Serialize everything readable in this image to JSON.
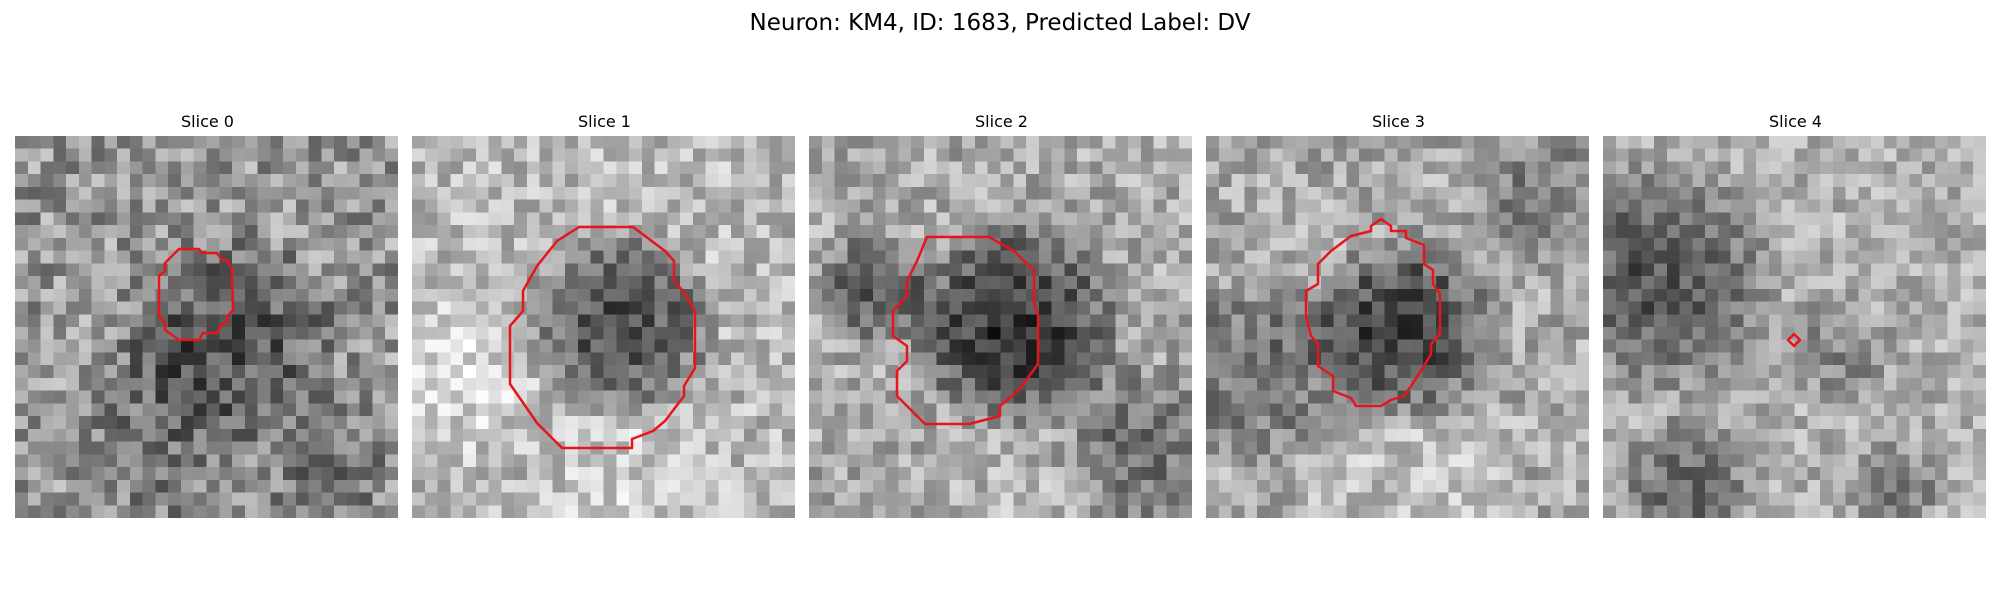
{
  "figure": {
    "title": "Neuron: KM4, ID: 1683, Predicted Label: DV"
  },
  "contour_color": "#e8141c",
  "panels": [
    {
      "title": "Slice 0",
      "image": "grayscale-microscopy-patch",
      "contour": "medium-blob"
    },
    {
      "title": "Slice 1",
      "image": "grayscale-microscopy-patch",
      "contour": "large-octagon"
    },
    {
      "title": "Slice 2",
      "image": "grayscale-microscopy-patch",
      "contour": "large-octagon"
    },
    {
      "title": "Slice 3",
      "image": "grayscale-microscopy-patch",
      "contour": "large-octagon"
    },
    {
      "title": "Slice 4",
      "image": "grayscale-microscopy-patch",
      "contour": "tiny-diamond"
    }
  ]
}
